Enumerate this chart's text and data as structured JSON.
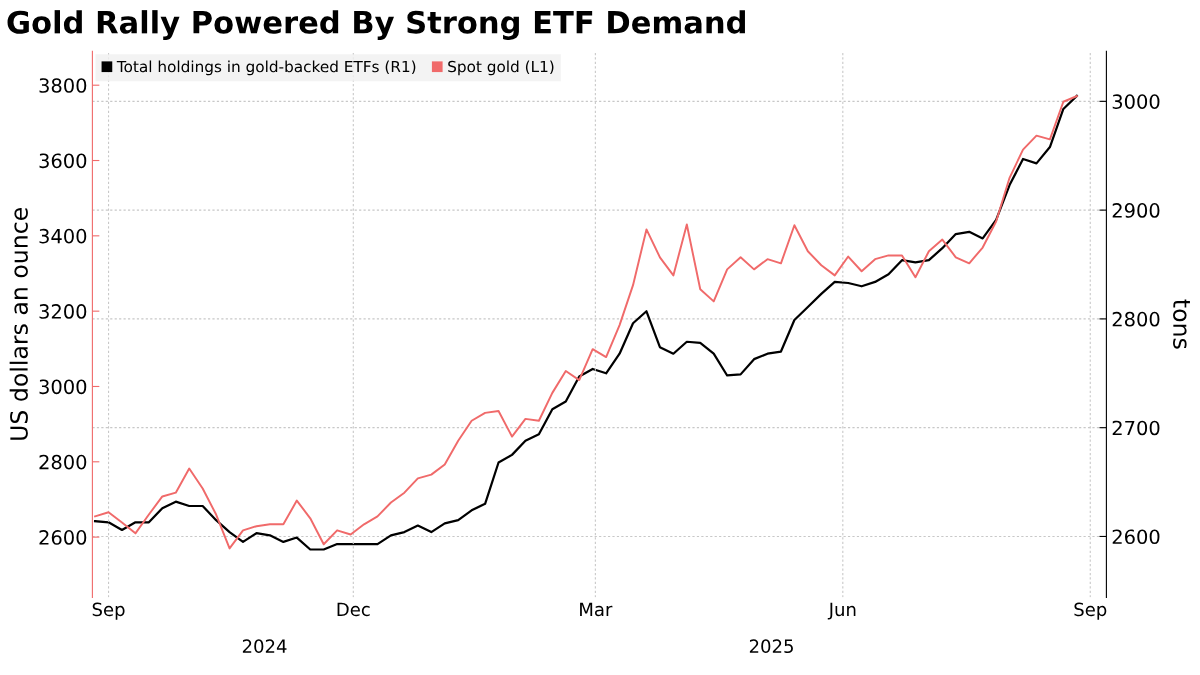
{
  "chart_data": {
    "type": "line",
    "title": "Gold Rally Powered By Strong ETF Demand",
    "ylabel": "US dollars an ounce",
    "y2label": "tons",
    "x": [
      "2024-08-27",
      "2024-09-01",
      "2024-09-06",
      "2024-09-11",
      "2024-09-16",
      "2024-09-21",
      "2024-09-26",
      "2024-10-01",
      "2024-10-06",
      "2024-10-11",
      "2024-10-16",
      "2024-10-21",
      "2024-10-26",
      "2024-10-31",
      "2024-11-05",
      "2024-11-10",
      "2024-11-15",
      "2024-11-20",
      "2024-11-25",
      "2024-11-30",
      "2024-12-05",
      "2024-12-10",
      "2024-12-15",
      "2024-12-20",
      "2024-12-25",
      "2024-12-30",
      "2025-01-04",
      "2025-01-09",
      "2025-01-14",
      "2025-01-19",
      "2025-01-24",
      "2025-01-29",
      "2025-02-03",
      "2025-02-08",
      "2025-02-13",
      "2025-02-18",
      "2025-02-23",
      "2025-02-28",
      "2025-03-05",
      "2025-03-10",
      "2025-03-15",
      "2025-03-20",
      "2025-03-25",
      "2025-03-30",
      "2025-04-04",
      "2025-04-09",
      "2025-04-14",
      "2025-04-19",
      "2025-04-24",
      "2025-04-29",
      "2025-05-04",
      "2025-05-09",
      "2025-05-14",
      "2025-05-19",
      "2025-05-24",
      "2025-05-29",
      "2025-06-03",
      "2025-06-08",
      "2025-06-13",
      "2025-06-18",
      "2025-06-23",
      "2025-06-28",
      "2025-07-03",
      "2025-07-08",
      "2025-07-13",
      "2025-07-18",
      "2025-07-23",
      "2025-07-28",
      "2025-08-02",
      "2025-08-07",
      "2025-08-12",
      "2025-08-17",
      "2025-08-22",
      "2025-08-27"
    ],
    "series": [
      {
        "name": "Total holdings in gold-backed ETFs (R1)",
        "color": "#000000",
        "axis": "y2",
        "values": [
          2614,
          2613,
          2606,
          2613,
          2613,
          2626,
          2632,
          2628,
          2628,
          2615,
          2604,
          2595,
          2603,
          2601,
          2595,
          2599,
          2588,
          2588,
          2593,
          2593,
          2593,
          2593,
          2601,
          2604,
          2610,
          2604,
          2612,
          2615,
          2624,
          2630,
          2668,
          2675,
          2688,
          2694,
          2717,
          2724,
          2747,
          2754,
          2750,
          2768,
          2796,
          2807,
          2774,
          2768,
          2779,
          2778,
          2768,
          2748,
          2749,
          2763,
          2768,
          2770,
          2799,
          2811,
          2823,
          2834,
          2833,
          2830,
          2834,
          2841,
          2854,
          2852,
          2854,
          2865,
          2878,
          2880,
          2874,
          2891,
          2923,
          2947,
          2943,
          2958,
          2993,
          3005
        ]
      },
      {
        "name": "Spot gold (L1)",
        "color": "#f06a6a",
        "values": [
          2655,
          2666,
          2639,
          2610,
          2660,
          2708,
          2718,
          2782,
          2729,
          2660,
          2570,
          2618,
          2629,
          2634,
          2634,
          2697,
          2650,
          2581,
          2618,
          2607,
          2634,
          2655,
          2692,
          2718,
          2756,
          2766,
          2793,
          2856,
          2909,
          2930,
          2935,
          2867,
          2914,
          2909,
          2983,
          3041,
          3017,
          3099,
          3078,
          3163,
          3269,
          3417,
          3343,
          3295,
          3430,
          3258,
          3226,
          3311,
          3343,
          3311,
          3338,
          3327,
          3428,
          3359,
          3322,
          3295,
          3345,
          3306,
          3338,
          3348,
          3348,
          3290,
          3359,
          3390,
          3343,
          3327,
          3369,
          3438,
          3554,
          3629,
          3666,
          3656,
          3756,
          3771
        ]
      }
    ],
    "xlim": [
      "2024-08-26",
      "2025-09-07"
    ],
    "xticks": [
      {
        "value": "2024-09-01",
        "label": "Sep"
      },
      {
        "value": "2024-12-01",
        "label": "Dec"
      },
      {
        "value": "2025-03-01",
        "label": "Mar"
      },
      {
        "value": "2025-06-01",
        "label": "Jun"
      },
      {
        "value": "2025-09-01",
        "label": "Sep"
      }
    ],
    "ylim": [
      2440,
      3890
    ],
    "yticks": [
      2600,
      2800,
      3000,
      3200,
      3400,
      3600,
      3800
    ],
    "y2lim": [
      2544,
      3046
    ],
    "y2ticks": [
      2600,
      2700,
      2800,
      2900,
      3000
    ],
    "annotations": [
      "2024",
      "2025"
    ],
    "grid": true,
    "legend": "top left",
    "line_style": "solid"
  }
}
